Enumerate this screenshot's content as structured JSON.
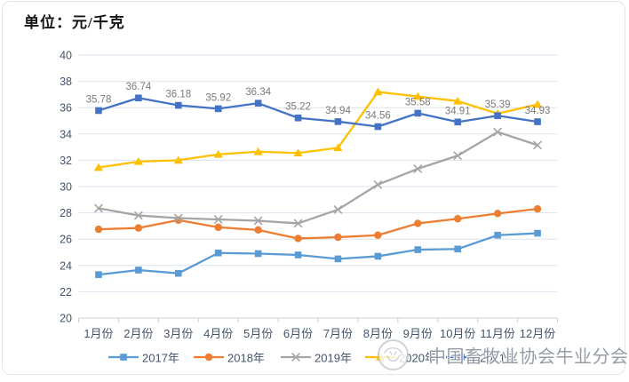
{
  "title": "单位：元/千克",
  "watermark": {
    "logo": "cattle-association-seal",
    "text": "中国畜牧业协会牛业分会"
  },
  "chart_data": {
    "type": "line",
    "categories": [
      "1月份",
      "2月份",
      "3月份",
      "4月份",
      "5月份",
      "6月份",
      "7月份",
      "8月份",
      "9月份",
      "10月份",
      "11月份",
      "12月份"
    ],
    "series": [
      {
        "name": "2017年",
        "color": "#5B9BD5",
        "marker": "square",
        "values": [
          23.3,
          23.65,
          23.4,
          24.95,
          24.9,
          24.8,
          24.5,
          24.7,
          25.2,
          25.25,
          26.3,
          26.45
        ]
      },
      {
        "name": "2018年",
        "color": "#ED7D31",
        "marker": "circle",
        "values": [
          26.75,
          26.85,
          27.45,
          26.9,
          26.7,
          26.05,
          26.15,
          26.3,
          27.2,
          27.55,
          27.95,
          28.3
        ]
      },
      {
        "name": "2019年",
        "color": "#A5A5A5",
        "marker": "x",
        "values": [
          28.35,
          27.8,
          27.6,
          27.5,
          27.4,
          27.2,
          28.25,
          30.15,
          31.35,
          32.35,
          34.15,
          33.15
        ]
      },
      {
        "name": "2020年",
        "color": "#FFC000",
        "marker": "triangle",
        "values": [
          31.45,
          31.9,
          32.0,
          32.45,
          32.65,
          32.55,
          32.95,
          37.2,
          36.85,
          36.5,
          35.55,
          36.25
        ]
      },
      {
        "name": "2021年",
        "color": "#4472C4",
        "marker": "square",
        "values": [
          35.78,
          36.74,
          36.18,
          35.92,
          36.34,
          35.22,
          34.94,
          34.56,
          35.58,
          34.91,
          35.39,
          34.93
        ],
        "point_labels": [
          "35.78",
          "36.74",
          "36.18",
          "35.92",
          "36.34",
          "35.22",
          "34.94",
          "34.56",
          "35.58",
          "34.91",
          "35.39",
          "34.93"
        ]
      }
    ],
    "ylim": [
      20,
      40
    ],
    "yticks": [
      20,
      22,
      24,
      26,
      28,
      30,
      32,
      34,
      36,
      38,
      40
    ],
    "grid": true,
    "legend_position": "bottom",
    "colors": {
      "axis_text": "#44546A",
      "gridline": "#DBE2EE",
      "axis_line": "#C9CFD9",
      "data_label": "#7A7A7A"
    }
  }
}
